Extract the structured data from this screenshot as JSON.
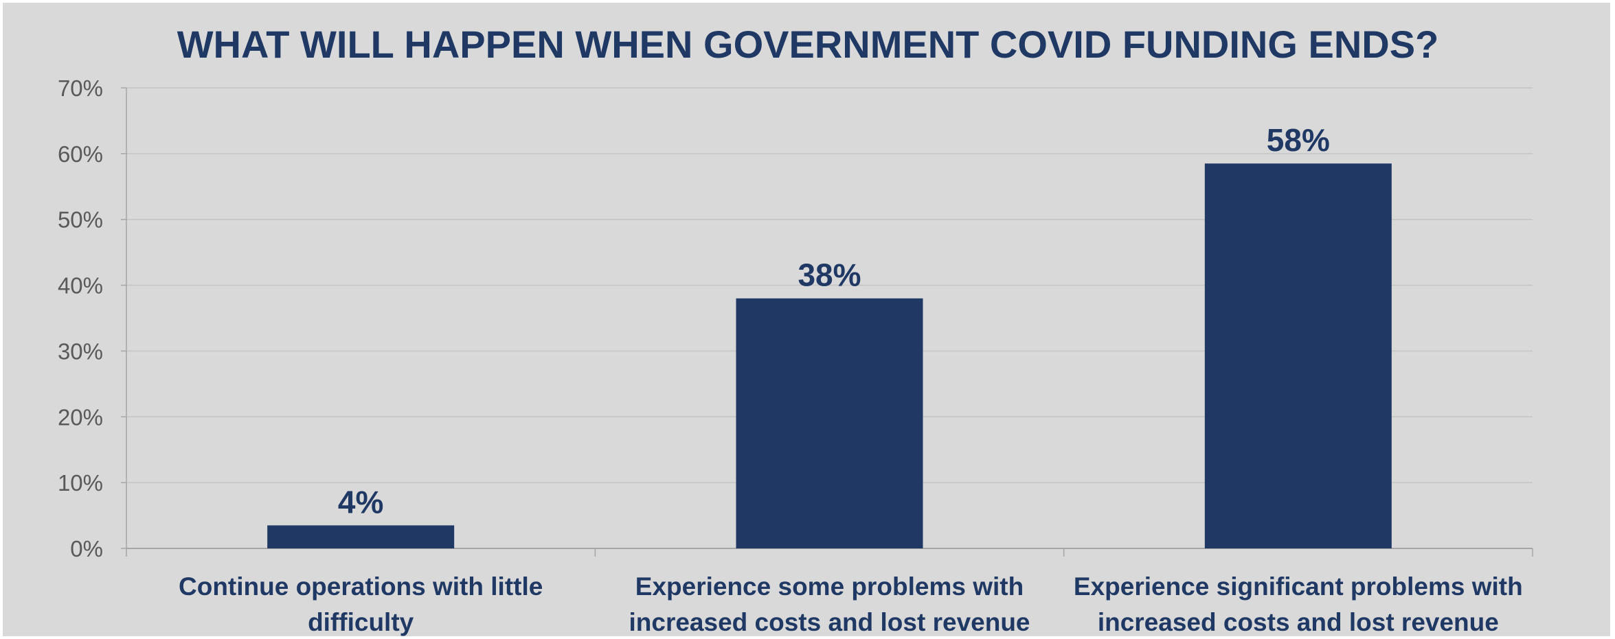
{
  "colors": {
    "background": "#d9d9d9",
    "bar": "#203864",
    "title": "#1f3864",
    "grid": "#c4c4c4",
    "axis": "#a6a6a6",
    "tick_label": "#595959"
  },
  "chart_data": {
    "type": "bar",
    "title": "WHAT WILL HAPPEN WHEN GOVERNMENT COVID FUNDING ENDS?",
    "categories": [
      [
        "Continue operations with little",
        "difficulty"
      ],
      [
        "Experience some problems with",
        "increased costs and lost revenue"
      ],
      [
        "Experience significant problems with",
        "increased costs and lost revenue"
      ]
    ],
    "values": [
      3.5,
      38,
      58.5
    ],
    "data_labels": [
      "4%",
      "38%",
      "58%"
    ],
    "ylim": [
      0,
      70
    ],
    "yticks": [
      0,
      10,
      20,
      30,
      40,
      50,
      60,
      70
    ],
    "ytick_labels": [
      "0%",
      "10%",
      "20%",
      "30%",
      "40%",
      "50%",
      "60%",
      "70%"
    ],
    "grid": true,
    "legend": "none"
  }
}
